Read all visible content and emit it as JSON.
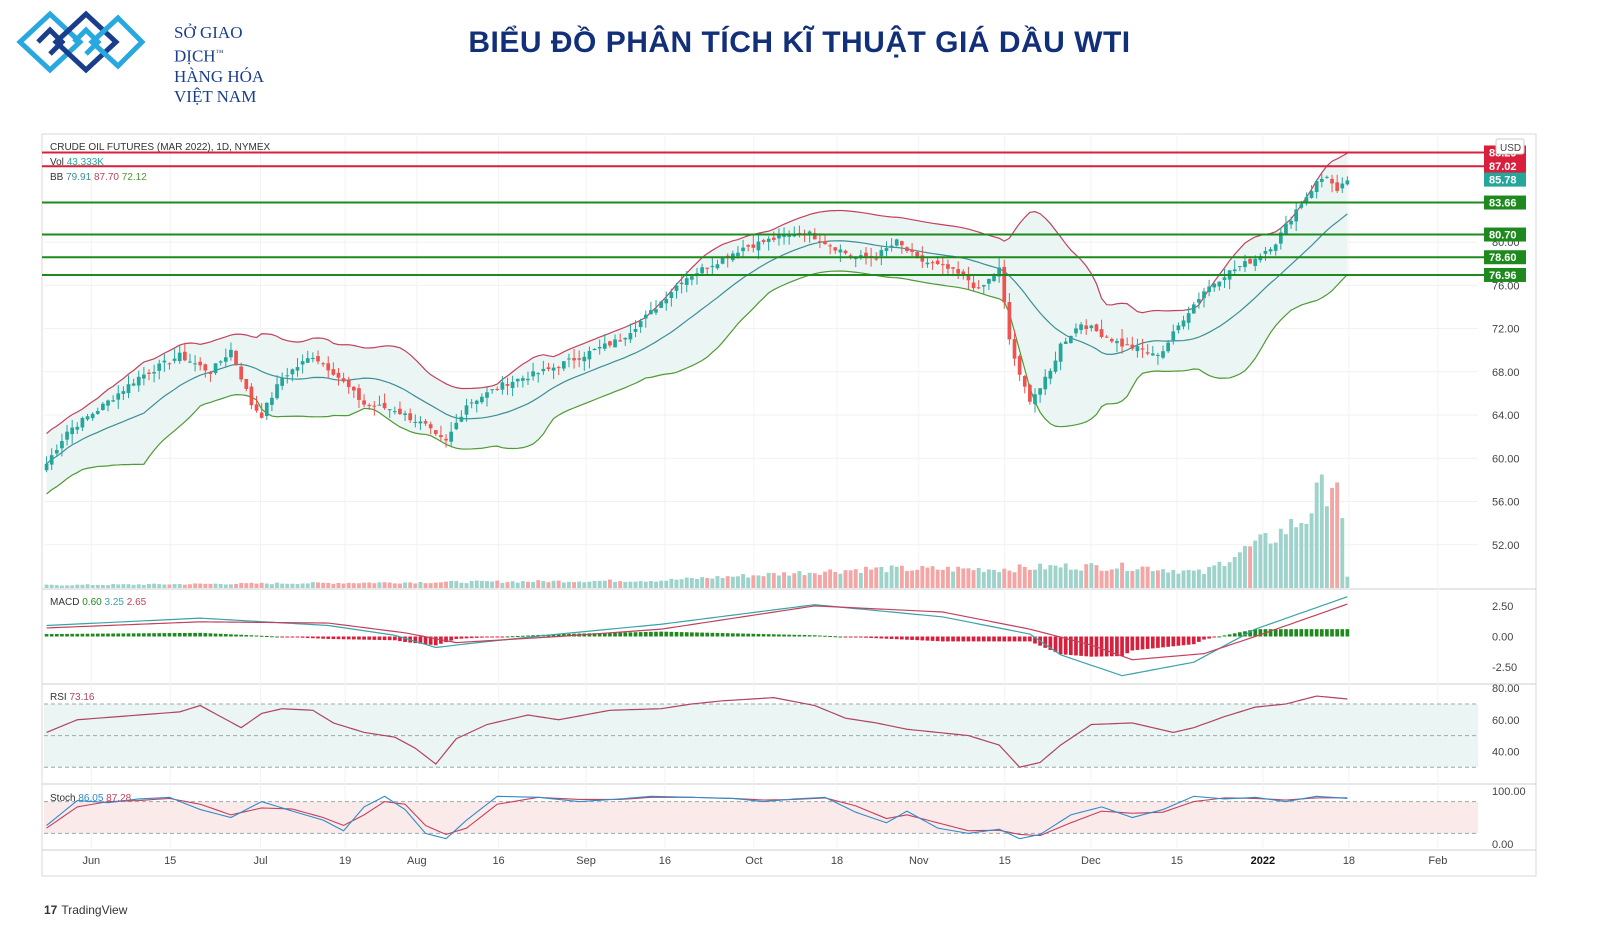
{
  "header": {
    "logo_lines": [
      "SỞ GIAO DỊCH",
      "HÀNG HÓA",
      "VIỆT NAM"
    ],
    "logo_mark": "™",
    "title": "BIỂU ĐỒ PHÂN TÍCH KĨ THUẬT GIÁ DẦU WTI",
    "brand_color": "#1a3e8c",
    "accent_color": "#29a8e0"
  },
  "legend": {
    "instrument": "CRUDE OIL FUTURES (MAR 2022), 1D, NYMEX",
    "vol_label": "Vol",
    "vol_value": "43.333K",
    "bb_label": "BB",
    "bb_values": [
      "79.91",
      "87.70",
      "72.12"
    ],
    "macd_label": "MACD",
    "macd_values": [
      "0.60",
      "3.25",
      "2.65"
    ],
    "rsi_label": "RSI",
    "rsi_value": "73.16",
    "stoch_label": "Stoch",
    "stoch_values": [
      "86.05",
      "87.28"
    ]
  },
  "currency": "USD",
  "footer": {
    "brand": "TradingView"
  },
  "chart_data": {
    "type": "candlestick",
    "x_ticks": [
      "Jun",
      "15",
      "Jul",
      "19",
      "Aug",
      "16",
      "Sep",
      "16",
      "Oct",
      "18",
      "Nov",
      "15",
      "Dec",
      "15",
      "2022",
      "18",
      "Feb"
    ],
    "price_axis": {
      "ylim": [
        48,
        90
      ],
      "ticks": [
        "52.00",
        "56.00",
        "60.00",
        "64.00",
        "68.00",
        "72.00",
        "76.00",
        "80.00"
      ]
    },
    "macd_axis": {
      "ylim": [
        -3.8,
        3.8
      ],
      "ticks": [
        "2.50",
        "0.00",
        "-2.50"
      ]
    },
    "rsi_axis": {
      "ylim": [
        20,
        82
      ],
      "ticks": [
        "80.00",
        "60.00",
        "40.00"
      ],
      "band": [
        30,
        70
      ]
    },
    "stoch_axis": {
      "ylim": [
        0,
        100
      ],
      "ticks": [
        "100.00",
        "0.00"
      ],
      "band": [
        20,
        80
      ]
    },
    "levels": [
      {
        "value": 88.29,
        "label": "88.29",
        "color": "#d81f3c",
        "kind": "resistance"
      },
      {
        "value": 87.02,
        "label": "87.02",
        "color": "#d81f3c",
        "kind": "resistance"
      },
      {
        "value": 85.78,
        "label": "85.78",
        "color": "#26a69a",
        "kind": "last"
      },
      {
        "value": 83.66,
        "label": "83.66",
        "color": "#1e8a1e",
        "kind": "support"
      },
      {
        "value": 80.7,
        "label": "80.70",
        "color": "#1e8a1e",
        "kind": "support"
      },
      {
        "value": 78.6,
        "label": "78.60",
        "color": "#1e8a1e",
        "kind": "support"
      },
      {
        "value": 76.96,
        "label": "76.96",
        "color": "#1e8a1e",
        "kind": "support"
      }
    ],
    "close_path": [
      [
        0,
        59.5
      ],
      [
        4,
        62.5
      ],
      [
        10,
        64.5
      ],
      [
        18,
        67.5
      ],
      [
        26,
        69.5
      ],
      [
        32,
        68
      ],
      [
        36,
        70
      ],
      [
        40,
        65
      ],
      [
        42,
        64
      ],
      [
        46,
        67.5
      ],
      [
        52,
        69.5
      ],
      [
        56,
        68
      ],
      [
        62,
        65
      ],
      [
        68,
        64.5
      ],
      [
        74,
        63
      ],
      [
        76,
        62
      ],
      [
        78,
        61.5
      ],
      [
        82,
        65
      ],
      [
        90,
        67
      ],
      [
        98,
        68.2
      ],
      [
        106,
        69.8
      ],
      [
        112,
        71
      ],
      [
        118,
        73.5
      ],
      [
        124,
        76.5
      ],
      [
        130,
        78
      ],
      [
        136,
        79.5
      ],
      [
        142,
        80.3
      ],
      [
        148,
        81
      ],
      [
        154,
        79.5
      ],
      [
        158,
        78.5
      ],
      [
        162,
        78.7
      ],
      [
        166,
        80
      ],
      [
        170,
        78.4
      ],
      [
        176,
        77.5
      ],
      [
        180,
        76.5
      ],
      [
        182,
        75.5
      ],
      [
        186,
        77.5
      ],
      [
        188,
        71
      ],
      [
        190,
        67.5
      ],
      [
        192,
        65.5
      ],
      [
        194,
        66.5
      ],
      [
        196,
        68
      ],
      [
        198,
        70.5
      ],
      [
        202,
        72.5
      ],
      [
        206,
        71.5
      ],
      [
        210,
        70.5
      ],
      [
        214,
        70
      ],
      [
        216,
        69.5
      ],
      [
        218,
        70
      ],
      [
        222,
        73
      ],
      [
        226,
        75.5
      ],
      [
        230,
        77
      ],
      [
        232,
        77.5
      ],
      [
        236,
        78.5
      ],
      [
        240,
        80
      ],
      [
        244,
        83
      ],
      [
        248,
        85.5
      ],
      [
        250,
        86.2
      ],
      [
        252,
        84.5
      ],
      [
        254,
        85.78
      ]
    ],
    "volume_path": [
      [
        0,
        0.3
      ],
      [
        120,
        0.8
      ],
      [
        160,
        2.0
      ],
      [
        186,
        2.0
      ],
      [
        200,
        2.3
      ],
      [
        214,
        2.2
      ],
      [
        226,
        1.6
      ],
      [
        232,
        3.5
      ],
      [
        240,
        5.5
      ],
      [
        246,
        7.5
      ],
      [
        248,
        9.5
      ],
      [
        252,
        12
      ],
      [
        254,
        1.0
      ]
    ],
    "macd_path": [
      [
        0,
        0.9
      ],
      [
        30,
        1.5
      ],
      [
        55,
        0.9
      ],
      [
        68,
        0.1
      ],
      [
        76,
        -0.9
      ],
      [
        82,
        -0.6
      ],
      [
        100,
        0.2
      ],
      [
        120,
        1.0
      ],
      [
        150,
        2.6
      ],
      [
        175,
        1.6
      ],
      [
        192,
        0.2
      ],
      [
        198,
        -1.5
      ],
      [
        210,
        -3.2
      ],
      [
        224,
        -2.1
      ],
      [
        236,
        0.6
      ],
      [
        254,
        3.25
      ]
    ],
    "macd_signal_path": [
      [
        0,
        0.7
      ],
      [
        30,
        1.2
      ],
      [
        55,
        1.1
      ],
      [
        70,
        0.3
      ],
      [
        80,
        -0.5
      ],
      [
        100,
        0.0
      ],
      [
        120,
        0.6
      ],
      [
        150,
        2.5
      ],
      [
        175,
        2.0
      ],
      [
        192,
        0.6
      ],
      [
        204,
        -0.7
      ],
      [
        212,
        -1.9
      ],
      [
        226,
        -1.4
      ],
      [
        236,
        0.0
      ],
      [
        254,
        2.65
      ]
    ],
    "rsi_path": [
      [
        0,
        52
      ],
      [
        6,
        60
      ],
      [
        18,
        63
      ],
      [
        26,
        65
      ],
      [
        30,
        69
      ],
      [
        34,
        62
      ],
      [
        38,
        55
      ],
      [
        42,
        64
      ],
      [
        46,
        67
      ],
      [
        52,
        66
      ],
      [
        56,
        58
      ],
      [
        62,
        52
      ],
      [
        68,
        49
      ],
      [
        72,
        42
      ],
      [
        76,
        32
      ],
      [
        80,
        48
      ],
      [
        86,
        57
      ],
      [
        94,
        63
      ],
      [
        100,
        60
      ],
      [
        110,
        66
      ],
      [
        120,
        67
      ],
      [
        126,
        70
      ],
      [
        132,
        72
      ],
      [
        142,
        74
      ],
      [
        150,
        69
      ],
      [
        156,
        61
      ],
      [
        162,
        58
      ],
      [
        168,
        54
      ],
      [
        174,
        52
      ],
      [
        180,
        50
      ],
      [
        186,
        44
      ],
      [
        190,
        30
      ],
      [
        194,
        33
      ],
      [
        198,
        44
      ],
      [
        204,
        57
      ],
      [
        212,
        58
      ],
      [
        220,
        52
      ],
      [
        224,
        55
      ],
      [
        230,
        62
      ],
      [
        236,
        68
      ],
      [
        242,
        70
      ],
      [
        248,
        75
      ],
      [
        254,
        73.16
      ]
    ],
    "stoch_path": [
      [
        0,
        35
      ],
      [
        6,
        82
      ],
      [
        12,
        78
      ],
      [
        18,
        85
      ],
      [
        24,
        88
      ],
      [
        30,
        65
      ],
      [
        36,
        50
      ],
      [
        42,
        80
      ],
      [
        48,
        62
      ],
      [
        54,
        45
      ],
      [
        58,
        25
      ],
      [
        62,
        70
      ],
      [
        66,
        90
      ],
      [
        70,
        65
      ],
      [
        74,
        20
      ],
      [
        78,
        10
      ],
      [
        82,
        45
      ],
      [
        88,
        90
      ],
      [
        96,
        88
      ],
      [
        104,
        80
      ],
      [
        112,
        85
      ],
      [
        118,
        90
      ],
      [
        126,
        88
      ],
      [
        134,
        86
      ],
      [
        140,
        80
      ],
      [
        146,
        85
      ],
      [
        152,
        88
      ],
      [
        158,
        60
      ],
      [
        164,
        40
      ],
      [
        168,
        62
      ],
      [
        174,
        30
      ],
      [
        180,
        20
      ],
      [
        186,
        28
      ],
      [
        190,
        10
      ],
      [
        194,
        18
      ],
      [
        200,
        55
      ],
      [
        206,
        70
      ],
      [
        212,
        50
      ],
      [
        218,
        65
      ],
      [
        224,
        90
      ],
      [
        230,
        85
      ],
      [
        236,
        88
      ],
      [
        242,
        80
      ],
      [
        248,
        90
      ],
      [
        254,
        86.05
      ]
    ],
    "stoch_d_path": [
      [
        0,
        30
      ],
      [
        6,
        70
      ],
      [
        12,
        80
      ],
      [
        18,
        82
      ],
      [
        24,
        86
      ],
      [
        30,
        75
      ],
      [
        36,
        55
      ],
      [
        42,
        68
      ],
      [
        48,
        66
      ],
      [
        54,
        50
      ],
      [
        58,
        35
      ],
      [
        62,
        55
      ],
      [
        66,
        80
      ],
      [
        70,
        75
      ],
      [
        74,
        35
      ],
      [
        78,
        18
      ],
      [
        82,
        30
      ],
      [
        88,
        75
      ],
      [
        96,
        88
      ],
      [
        104,
        84
      ],
      [
        112,
        84
      ],
      [
        118,
        88
      ],
      [
        126,
        88
      ],
      [
        134,
        86
      ],
      [
        140,
        83
      ],
      [
        146,
        84
      ],
      [
        152,
        87
      ],
      [
        158,
        72
      ],
      [
        164,
        48
      ],
      [
        168,
        55
      ],
      [
        174,
        40
      ],
      [
        180,
        25
      ],
      [
        186,
        26
      ],
      [
        190,
        18
      ],
      [
        194,
        16
      ],
      [
        200,
        40
      ],
      [
        206,
        62
      ],
      [
        212,
        58
      ],
      [
        218,
        60
      ],
      [
        224,
        80
      ],
      [
        230,
        87
      ],
      [
        236,
        86
      ],
      [
        242,
        83
      ],
      [
        248,
        87
      ],
      [
        254,
        87.28
      ]
    ]
  },
  "colors": {
    "up": "#26a69a",
    "down": "#ef5350",
    "bb_basis": "#3d8f95",
    "bb_upper": "#c2425d",
    "bb_lower": "#4f9a33",
    "bb_fill": "#eaf5f4",
    "macd_line": "#3aa3a8",
    "signal_line": "#c2425d",
    "hist_up": "#1e8a1e",
    "hist_down": "#d81f3c",
    "rsi_line": "#b0445e",
    "stoch_k": "#2f8cc9",
    "stoch_d": "#c2425d",
    "stoch_band": "#fbeaea",
    "rsi_band": "#eaf5f4"
  }
}
